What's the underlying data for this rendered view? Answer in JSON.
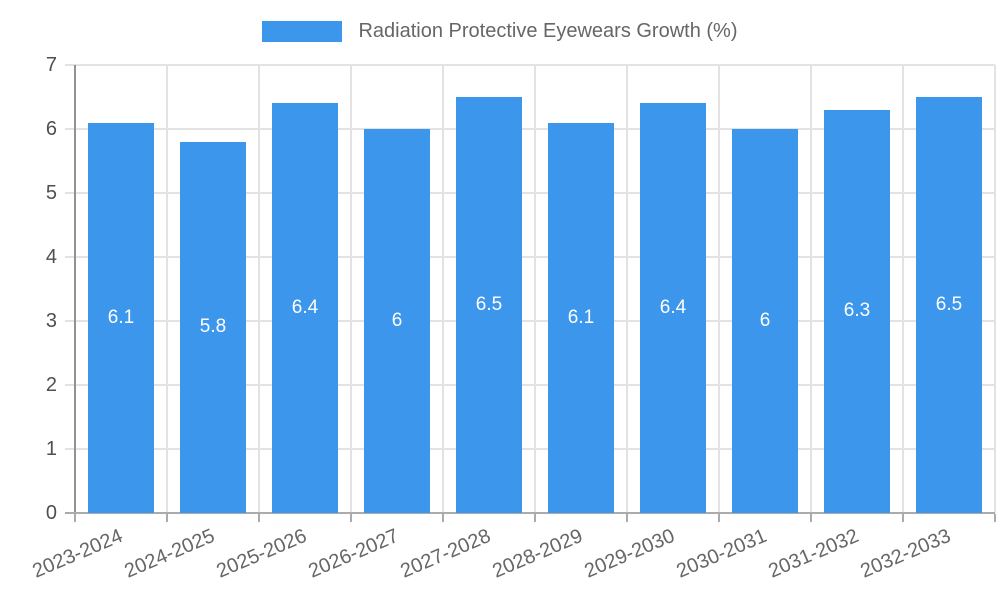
{
  "legend": {
    "label": "Radiation Protective Eyewears Growth (%)",
    "swatch_color": "#3b96ec"
  },
  "chart_data": {
    "type": "bar",
    "title": "Radiation Protective Eyewears Growth (%)",
    "series_name": "Radiation Protective Eyewears Growth (%)",
    "categories": [
      "2023-2024",
      "2024-2025",
      "2025-2026",
      "2026-2027",
      "2027-2028",
      "2028-2029",
      "2029-2030",
      "2030-2031",
      "2031-2032",
      "2032-2033"
    ],
    "values": [
      6.1,
      5.8,
      6.4,
      6,
      6.5,
      6.1,
      6.4,
      6,
      6.3,
      6.5
    ],
    "xlabel": "",
    "ylabel": "",
    "ylim": [
      0,
      7
    ],
    "yticks": [
      0,
      1,
      2,
      3,
      4,
      5,
      6,
      7
    ],
    "grid": true,
    "legend_position": "top",
    "bar_color": "#3b96ec",
    "value_label_color": "#ffffff",
    "x_label_rotation_deg": -23
  }
}
